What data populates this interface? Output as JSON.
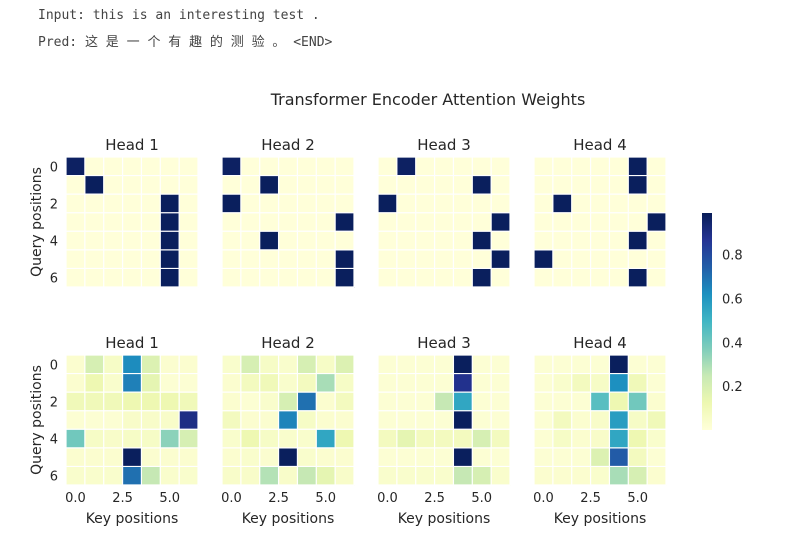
{
  "header": {
    "input_line": "Input: this is an interesting test .",
    "pred_line": "Pred: 这 是 一 个 有 趣 的 测 验 。 <END>"
  },
  "chart_data": {
    "type": "heatmap",
    "title": "Transformer Encoder Attention Weights",
    "xlabel": "Key positions",
    "ylabel": "Query positions",
    "colormap": "YlGnBu",
    "colors": {
      "low": "#ffffd9",
      "mid": "#41b6c4",
      "high": "#081d58",
      "grid": "#ffffff"
    },
    "x_ticks": [
      "0.0",
      "2.5",
      "5.0"
    ],
    "y_ticks": [
      "0",
      "2",
      "4",
      "6"
    ],
    "colorbar_ticks": [
      "0.2",
      "0.4",
      "0.6",
      "0.8"
    ],
    "colorbar_range": [
      0,
      0.99
    ],
    "grid": true,
    "rows": [
      {
        "heads": [
          {
            "name": "Head 1",
            "weights": [
              [
                0.97,
                0.0,
                0.0,
                0.0,
                0.0,
                0.0,
                0.0
              ],
              [
                0.0,
                0.98,
                0.0,
                0.0,
                0.0,
                0.0,
                0.0
              ],
              [
                0.0,
                0.0,
                0.0,
                0.0,
                0.0,
                0.98,
                0.0
              ],
              [
                0.0,
                0.0,
                0.0,
                0.0,
                0.0,
                0.98,
                0.0
              ],
              [
                0.0,
                0.0,
                0.0,
                0.0,
                0.0,
                0.98,
                0.0
              ],
              [
                0.0,
                0.0,
                0.0,
                0.0,
                0.0,
                0.98,
                0.0
              ],
              [
                0.0,
                0.0,
                0.0,
                0.0,
                0.0,
                0.98,
                0.0
              ]
            ]
          },
          {
            "name": "Head 2",
            "weights": [
              [
                0.97,
                0.0,
                0.0,
                0.0,
                0.0,
                0.0,
                0.0
              ],
              [
                0.0,
                0.0,
                0.98,
                0.0,
                0.0,
                0.0,
                0.0
              ],
              [
                0.98,
                0.0,
                0.0,
                0.0,
                0.0,
                0.0,
                0.0
              ],
              [
                0.0,
                0.0,
                0.0,
                0.0,
                0.0,
                0.0,
                0.98
              ],
              [
                0.0,
                0.0,
                0.98,
                0.0,
                0.0,
                0.0,
                0.0
              ],
              [
                0.0,
                0.0,
                0.0,
                0.0,
                0.0,
                0.0,
                0.98
              ],
              [
                0.0,
                0.0,
                0.0,
                0.0,
                0.0,
                0.0,
                0.98
              ]
            ]
          },
          {
            "name": "Head 3",
            "weights": [
              [
                0.0,
                0.97,
                0.0,
                0.0,
                0.0,
                0.0,
                0.0
              ],
              [
                0.0,
                0.0,
                0.0,
                0.0,
                0.0,
                0.98,
                0.0
              ],
              [
                0.98,
                0.0,
                0.0,
                0.0,
                0.0,
                0.0,
                0.0
              ],
              [
                0.0,
                0.0,
                0.0,
                0.0,
                0.0,
                0.0,
                0.98
              ],
              [
                0.0,
                0.0,
                0.0,
                0.0,
                0.0,
                0.98,
                0.0
              ],
              [
                0.0,
                0.0,
                0.0,
                0.0,
                0.0,
                0.0,
                0.98
              ],
              [
                0.0,
                0.0,
                0.0,
                0.0,
                0.0,
                0.98,
                0.0
              ]
            ]
          },
          {
            "name": "Head 4",
            "weights": [
              [
                0.0,
                0.0,
                0.0,
                0.0,
                0.0,
                0.98,
                0.0
              ],
              [
                0.0,
                0.0,
                0.0,
                0.0,
                0.0,
                0.98,
                0.0
              ],
              [
                0.0,
                0.98,
                0.0,
                0.0,
                0.0,
                0.0,
                0.0
              ],
              [
                0.0,
                0.0,
                0.0,
                0.0,
                0.0,
                0.0,
                0.98
              ],
              [
                0.0,
                0.0,
                0.0,
                0.0,
                0.0,
                0.98,
                0.0
              ],
              [
                0.98,
                0.0,
                0.0,
                0.0,
                0.0,
                0.0,
                0.0
              ],
              [
                0.0,
                0.0,
                0.0,
                0.0,
                0.0,
                0.98,
                0.0
              ]
            ]
          }
        ]
      },
      {
        "heads": [
          {
            "name": "Head 1",
            "weights": [
              [
                0.03,
                0.2,
                0.06,
                0.63,
                0.18,
                0.03,
                0.03
              ],
              [
                0.03,
                0.12,
                0.04,
                0.66,
                0.15,
                0.02,
                0.02
              ],
              [
                0.1,
                0.1,
                0.1,
                0.12,
                0.12,
                0.12,
                0.1
              ],
              [
                0.02,
                0.02,
                0.02,
                0.05,
                0.05,
                0.05,
                0.9
              ],
              [
                0.4,
                0.06,
                0.05,
                0.06,
                0.06,
                0.35,
                0.2
              ],
              [
                0.03,
                0.03,
                0.03,
                0.98,
                0.03,
                0.03,
                0.03
              ],
              [
                0.04,
                0.04,
                0.04,
                0.7,
                0.25,
                0.04,
                0.04
              ]
            ]
          },
          {
            "name": "Head 2",
            "weights": [
              [
                0.04,
                0.2,
                0.06,
                0.04,
                0.2,
                0.06,
                0.18
              ],
              [
                0.03,
                0.08,
                0.1,
                0.04,
                0.08,
                0.3,
                0.06
              ],
              [
                0.03,
                0.02,
                0.04,
                0.2,
                0.7,
                0.03,
                0.08
              ],
              [
                0.08,
                0.03,
                0.03,
                0.65,
                0.06,
                0.03,
                0.03
              ],
              [
                0.04,
                0.12,
                0.06,
                0.04,
                0.04,
                0.55,
                0.12
              ],
              [
                0.03,
                0.04,
                0.03,
                0.98,
                0.04,
                0.03,
                0.03
              ],
              [
                0.05,
                0.05,
                0.28,
                0.05,
                0.25,
                0.15,
                0.05
              ]
            ]
          },
          {
            "name": "Head 3",
            "weights": [
              [
                0.02,
                0.02,
                0.02,
                0.02,
                0.98,
                0.02,
                0.02
              ],
              [
                0.02,
                0.02,
                0.02,
                0.02,
                0.88,
                0.02,
                0.02
              ],
              [
                0.02,
                0.02,
                0.02,
                0.25,
                0.55,
                0.02,
                0.02
              ],
              [
                0.02,
                0.02,
                0.02,
                0.02,
                0.98,
                0.02,
                0.02
              ],
              [
                0.08,
                0.15,
                0.08,
                0.08,
                0.08,
                0.2,
                0.08
              ],
              [
                0.02,
                0.02,
                0.02,
                0.02,
                0.98,
                0.02,
                0.02
              ],
              [
                0.04,
                0.04,
                0.04,
                0.04,
                0.25,
                0.2,
                0.04
              ]
            ]
          },
          {
            "name": "Head 4",
            "weights": [
              [
                0.02,
                0.02,
                0.02,
                0.02,
                0.98,
                0.02,
                0.02
              ],
              [
                0.02,
                0.04,
                0.08,
                0.06,
                0.62,
                0.1,
                0.02
              ],
              [
                0.02,
                0.02,
                0.02,
                0.45,
                0.12,
                0.4,
                0.03
              ],
              [
                0.02,
                0.08,
                0.03,
                0.05,
                0.58,
                0.06,
                0.1
              ],
              [
                0.02,
                0.06,
                0.03,
                0.05,
                0.55,
                0.12,
                0.04
              ],
              [
                0.02,
                0.02,
                0.02,
                0.18,
                0.75,
                0.08,
                0.02
              ],
              [
                0.03,
                0.03,
                0.03,
                0.04,
                0.3,
                0.2,
                0.03
              ]
            ]
          }
        ]
      }
    ]
  }
}
